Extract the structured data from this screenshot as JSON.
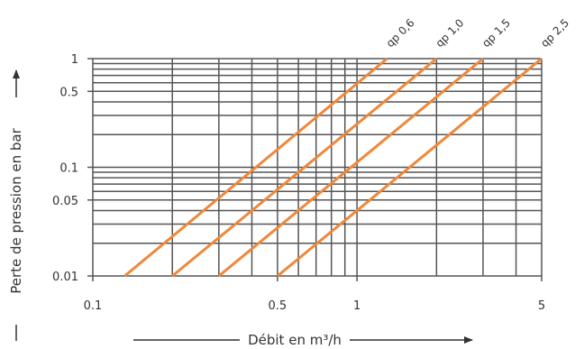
{
  "chart_data": {
    "type": "line",
    "xlabel": "Débit en m³/h",
    "ylabel": "Perte de pression en bar",
    "x_scale": "log",
    "y_scale": "log",
    "xlim": [
      0.1,
      5
    ],
    "ylim": [
      0.01,
      1
    ],
    "grid": true,
    "x_ticks": [
      {
        "value": 0.1,
        "label": "0.1"
      },
      {
        "value": 0.5,
        "label": "0.5"
      },
      {
        "value": 1,
        "label": "1"
      },
      {
        "value": 5,
        "label": "5"
      }
    ],
    "y_ticks": [
      {
        "value": 0.01,
        "label": "0.01"
      },
      {
        "value": 0.05,
        "label": "0.05"
      },
      {
        "value": 0.1,
        "label": "0.1"
      },
      {
        "value": 0.5,
        "label": "0.5"
      },
      {
        "value": 1,
        "label": "1"
      }
    ],
    "series": [
      {
        "name": "qp 0,6",
        "color": "#f0873a",
        "x": [
          0.132,
          1.3
        ],
        "y": [
          0.01,
          1
        ]
      },
      {
        "name": "qp 1,0",
        "color": "#f0873a",
        "x": [
          0.2,
          2.0
        ],
        "y": [
          0.01,
          1
        ]
      },
      {
        "name": "qp 1,5",
        "color": "#f0873a",
        "x": [
          0.3,
          3.0
        ],
        "y": [
          0.01,
          1
        ]
      },
      {
        "name": "qp 2,5",
        "color": "#f0873a",
        "x": [
          0.5,
          5.0
        ],
        "y": [
          0.01,
          1
        ]
      }
    ],
    "colors": {
      "grid": "#555555",
      "line": "#f0873a",
      "text": "#333333"
    }
  }
}
